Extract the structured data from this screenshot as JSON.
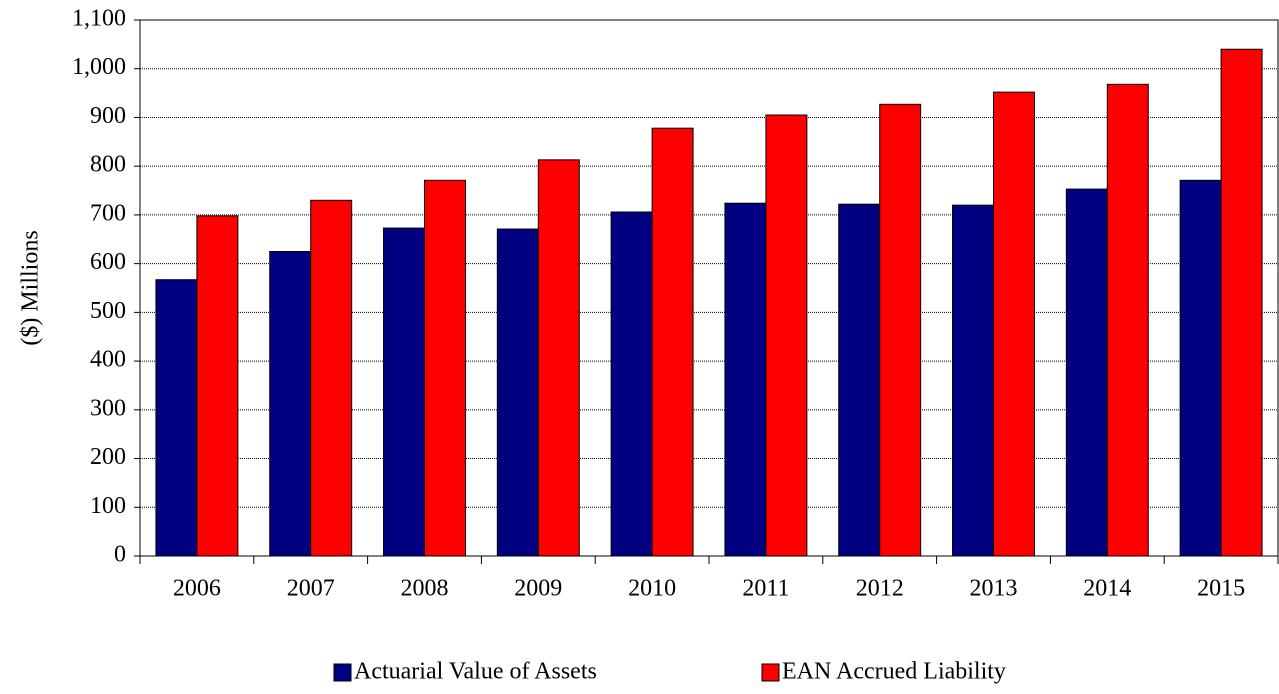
{
  "chart_data": {
    "type": "bar",
    "y_label": "($) Millions",
    "categories": [
      "2006",
      "2007",
      "2008",
      "2009",
      "2010",
      "2011",
      "2012",
      "2013",
      "2014",
      "2015"
    ],
    "series": [
      {
        "name": "Actuarial Value of Assets",
        "color": "#000080",
        "values": [
          567,
          625,
          673,
          671,
          706,
          724,
          722,
          720,
          753,
          771
        ]
      },
      {
        "name": "EAN Accrued Liability",
        "color": "#ff0000",
        "values": [
          698,
          730,
          771,
          813,
          878,
          905,
          927,
          952,
          968,
          1040
        ]
      }
    ],
    "ylim": [
      0,
      1100
    ],
    "yticks": [
      0,
      100,
      200,
      300,
      400,
      500,
      600,
      700,
      800,
      900,
      {
        "value": 1000,
        "label": "1,000"
      },
      {
        "value": 1100,
        "label": "1,100"
      }
    ],
    "grid": true,
    "legend": "bottom"
  }
}
